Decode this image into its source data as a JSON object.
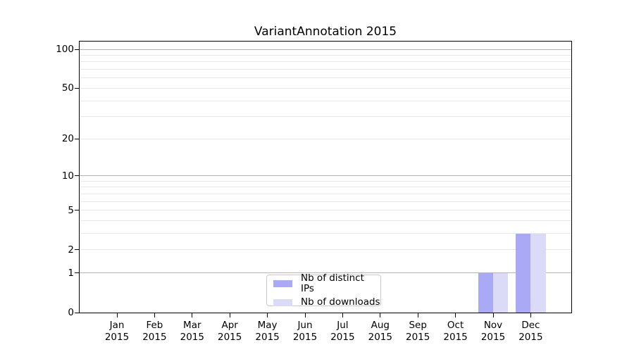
{
  "chart_data": {
    "type": "bar",
    "title": "VariantAnnotation 2015",
    "categories": [
      "Jan",
      "Feb",
      "Mar",
      "Apr",
      "May",
      "Jun",
      "Jul",
      "Aug",
      "Sep",
      "Oct",
      "Nov",
      "Dec"
    ],
    "category_year": "2015",
    "series": [
      {
        "name": "Nb of distinct IPs",
        "color": "#a9a9f6",
        "values": [
          0,
          0,
          0,
          0,
          0,
          0,
          0,
          0,
          0,
          0,
          1,
          3
        ]
      },
      {
        "name": "Nb of downloads",
        "color": "#dbdbf8",
        "values": [
          0,
          0,
          0,
          0,
          0,
          0,
          0,
          0,
          0,
          0,
          1,
          3
        ]
      }
    ],
    "y_axis": {
      "scale": "log1p",
      "tick_labels": [
        0,
        1,
        2,
        5,
        10,
        20,
        50,
        100
      ],
      "major_gridlines": [
        1,
        10,
        100
      ],
      "minor_gridlines": [
        2,
        3,
        4,
        5,
        6,
        7,
        8,
        9,
        20,
        30,
        40,
        50,
        60,
        70,
        80,
        90
      ],
      "display_max": 100
    },
    "legend": {
      "position": "lower center"
    },
    "colors": {
      "grid_major": "#b4b4b4",
      "grid_minor": "#e8e8e8",
      "axis": "#000000",
      "background": "#ffffff",
      "legend_border": "#c9c9c9"
    }
  }
}
